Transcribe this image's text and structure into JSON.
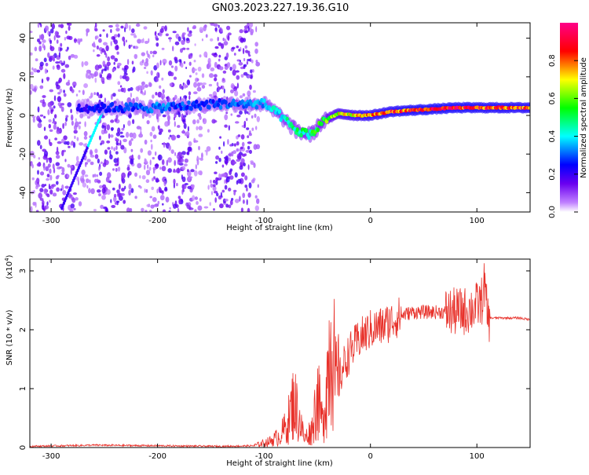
{
  "title": "GN03.2023.227.19.36.G10",
  "chart_data": [
    {
      "type": "heatmap",
      "xlabel": "Height of straight line (km)",
      "ylabel": "Frequency (Hz)",
      "xlim": [
        -320,
        150
      ],
      "ylim": [
        -50,
        48
      ],
      "x_ticks": [
        -300,
        -200,
        -100,
        0,
        100
      ],
      "y_ticks": [
        -40,
        -20,
        0,
        20,
        40
      ],
      "colorbar": {
        "label": "Normalized spectral amplitude",
        "range": [
          0,
          1
        ],
        "ticks": [
          "0.0",
          "0.2",
          "0.4",
          "0.6",
          "0.8"
        ],
        "tick_values": [
          0.0,
          0.2,
          0.4,
          0.6,
          0.8
        ]
      },
      "ridge": [
        {
          "x": -270,
          "y": 4,
          "a": 0.25
        },
        {
          "x": -240,
          "y": 4,
          "a": 0.3
        },
        {
          "x": -200,
          "y": 4,
          "a": 0.35
        },
        {
          "x": -170,
          "y": 5,
          "a": 0.3
        },
        {
          "x": -150,
          "y": 6,
          "a": 0.3
        },
        {
          "x": -120,
          "y": 6,
          "a": 0.35
        },
        {
          "x": -100,
          "y": 6,
          "a": 0.4
        },
        {
          "x": -85,
          "y": 0,
          "a": 0.45
        },
        {
          "x": -70,
          "y": -8,
          "a": 0.5
        },
        {
          "x": -55,
          "y": -10,
          "a": 0.55
        },
        {
          "x": -45,
          "y": -3,
          "a": 0.6
        },
        {
          "x": -30,
          "y": 1,
          "a": 0.75
        },
        {
          "x": -15,
          "y": 0,
          "a": 0.8
        },
        {
          "x": 0,
          "y": 0,
          "a": 0.85
        },
        {
          "x": 20,
          "y": 2,
          "a": 0.9
        },
        {
          "x": 50,
          "y": 3,
          "a": 0.95
        },
        {
          "x": 80,
          "y": 4,
          "a": 0.95
        },
        {
          "x": 110,
          "y": 4,
          "a": 0.92
        },
        {
          "x": 150,
          "y": 4,
          "a": 0.9
        }
      ]
    },
    {
      "type": "line",
      "xlabel": "Height of straight line (km)",
      "ylabel": "SNR (10 * v/v)",
      "y_multiplier_label": "(x10",
      "y_multiplier_exp": "4",
      "xlim": [
        -320,
        150
      ],
      "ylim": [
        0,
        3.2
      ],
      "x_ticks": [
        -300,
        -200,
        -100,
        0,
        100
      ],
      "y_ticks": [
        0,
        1,
        2,
        3
      ],
      "color": "#e8312a",
      "series": [
        {
          "x": [
            -320,
            -260,
            -200,
            -140,
            -110,
            -95,
            -85,
            -78,
            -72,
            -67,
            -62,
            -55,
            -50,
            -45,
            -40,
            -36,
            -33,
            -30,
            -25,
            -20,
            -10,
            0,
            10,
            20,
            30,
            40,
            50,
            60,
            70,
            80,
            90,
            100,
            105,
            107,
            110,
            120,
            130,
            140,
            150
          ],
          "y": [
            0.02,
            0.04,
            0.03,
            0.02,
            0.03,
            0.1,
            0.2,
            0.4,
            0.8,
            0.5,
            0.15,
            0.3,
            0.9,
            0.4,
            1.3,
            2.2,
            1.0,
            1.1,
            1.4,
            1.6,
            1.85,
            2.0,
            2.05,
            2.15,
            2.25,
            2.3,
            2.3,
            2.3,
            2.3,
            2.3,
            2.32,
            2.4,
            2.5,
            2.8,
            2.2,
            2.2,
            2.2,
            2.2,
            2.17
          ]
        }
      ]
    }
  ]
}
